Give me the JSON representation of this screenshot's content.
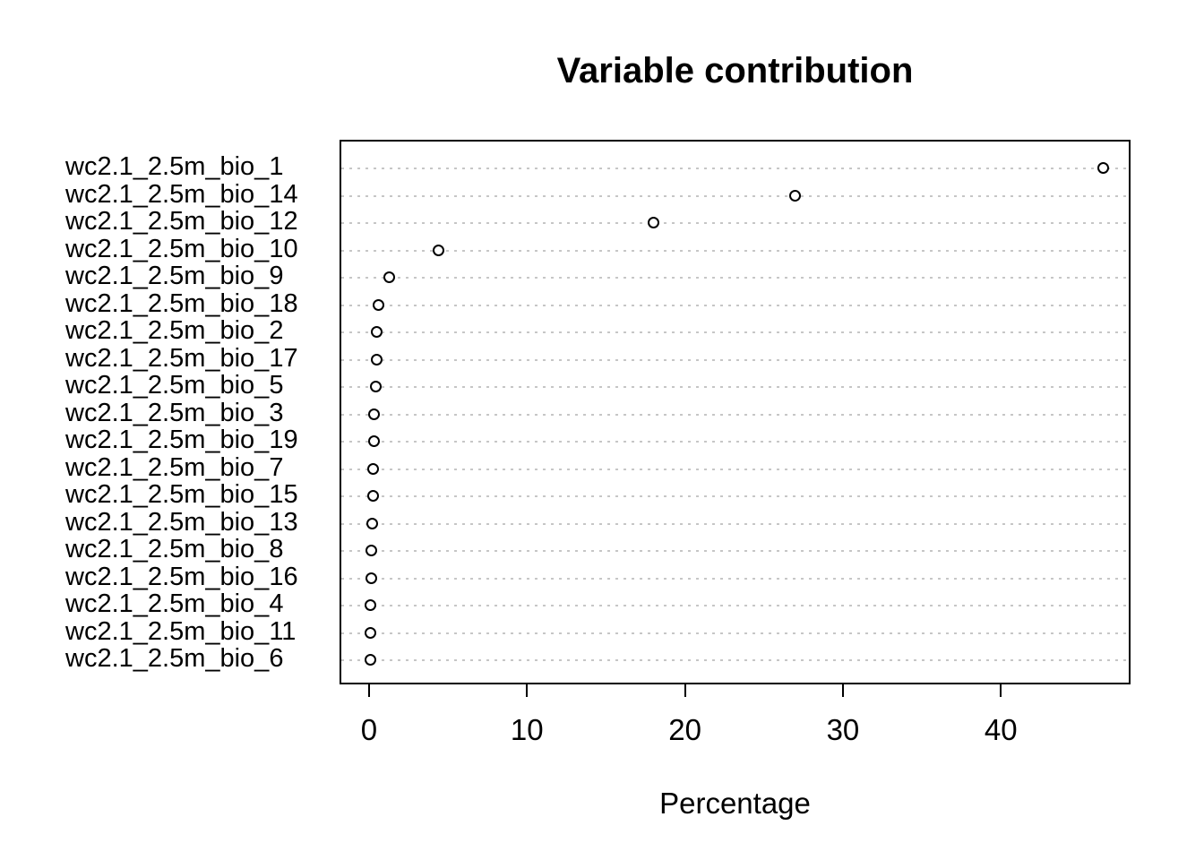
{
  "page": {
    "background": "#ffffff"
  },
  "chart_data": {
    "type": "scatter",
    "variant": "dotchart",
    "title": "Variable contribution",
    "xlabel": "Percentage",
    "ylabel": "",
    "categories": [
      "wc2.1_2.5m_bio_1",
      "wc2.1_2.5m_bio_14",
      "wc2.1_2.5m_bio_12",
      "wc2.1_2.5m_bio_10",
      "wc2.1_2.5m_bio_9",
      "wc2.1_2.5m_bio_18",
      "wc2.1_2.5m_bio_2",
      "wc2.1_2.5m_bio_17",
      "wc2.1_2.5m_bio_5",
      "wc2.1_2.5m_bio_3",
      "wc2.1_2.5m_bio_19",
      "wc2.1_2.5m_bio_7",
      "wc2.1_2.5m_bio_15",
      "wc2.1_2.5m_bio_13",
      "wc2.1_2.5m_bio_8",
      "wc2.1_2.5m_bio_16",
      "wc2.1_2.5m_bio_4",
      "wc2.1_2.5m_bio_11",
      "wc2.1_2.5m_bio_6"
    ],
    "values": [
      46.4,
      26.9,
      17.9,
      4.3,
      1.2,
      0.5,
      0.4,
      0.4,
      0.35,
      0.25,
      0.25,
      0.2,
      0.2,
      0.1,
      0.05,
      0.05,
      0.02,
      0.02,
      0.0
    ],
    "xticks": [
      0,
      10,
      20,
      30,
      40
    ],
    "xlim": [
      -1.87,
      48.21
    ],
    "grid": "horizontal dotted, one line per category",
    "legend": "none",
    "point_style": "open-circle",
    "colors": {
      "point_stroke": "#000000",
      "grid_line": "#c6c6c6",
      "text": "#000000",
      "box_border": "#000000"
    }
  }
}
